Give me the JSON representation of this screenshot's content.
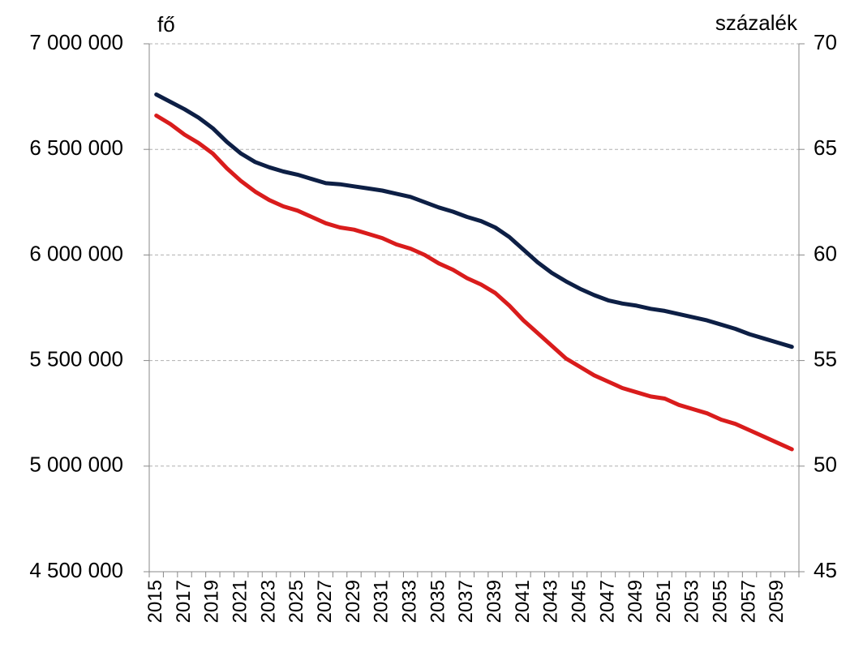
{
  "chart_data": {
    "type": "line",
    "y_label": "fő",
    "y2_label": "százalék",
    "categories": [
      "2015",
      null,
      "2017",
      null,
      "2019",
      null,
      "2021",
      null,
      "2023",
      null,
      "2025",
      null,
      "2027",
      null,
      "2029",
      null,
      "2031",
      null,
      "2033",
      null,
      "2035",
      null,
      "2037",
      null,
      "2039",
      null,
      "2041",
      null,
      "2043",
      null,
      "2045",
      null,
      "2047",
      null,
      "2049",
      null,
      "2051",
      null,
      "2053",
      null,
      "2055",
      null,
      "2057",
      null,
      "2059",
      null
    ],
    "series": [
      {
        "color": "#0d1f45",
        "axis": "y",
        "values": [
          6760000,
          6725000,
          6690000,
          6650000,
          6600000,
          6535000,
          6480000,
          6440000,
          6415000,
          6395000,
          6380000,
          6360000,
          6340000,
          6335000,
          6325000,
          6315000,
          6305000,
          6290000,
          6275000,
          6250000,
          6225000,
          6205000,
          6180000,
          6160000,
          6130000,
          6085000,
          6025000,
          5965000,
          5915000,
          5875000,
          5840000,
          5810000,
          5785000,
          5770000,
          5760000,
          5745000,
          5735000,
          5720000,
          5705000,
          5690000,
          5670000,
          5650000,
          5625000,
          5605000,
          5585000,
          5565000
        ]
      },
      {
        "color": "#d91c1c",
        "axis": "y2",
        "values": [
          66.6,
          66.2,
          65.7,
          65.3,
          64.8,
          64.1,
          63.5,
          63.0,
          62.6,
          62.3,
          62.1,
          61.8,
          61.5,
          61.3,
          61.2,
          61.0,
          60.8,
          60.5,
          60.3,
          60.0,
          59.6,
          59.3,
          58.9,
          58.6,
          58.2,
          57.6,
          56.9,
          56.3,
          55.7,
          55.1,
          54.7,
          54.3,
          54.0,
          53.7,
          53.5,
          53.3,
          53.2,
          52.9,
          52.7,
          52.5,
          52.2,
          52.0,
          51.7,
          51.4,
          51.1,
          50.8
        ]
      }
    ],
    "ylim": [
      4500000,
      7000000
    ],
    "yticks": [
      {
        "value": 4500000,
        "label": "4 500 000"
      },
      {
        "value": 5000000,
        "label": "5 000 000"
      },
      {
        "value": 5500000,
        "label": "5 500 000"
      },
      {
        "value": 6000000,
        "label": "6 000 000"
      },
      {
        "value": 6500000,
        "label": "6 500 000"
      },
      {
        "value": 7000000,
        "label": "7 000 000"
      }
    ],
    "y2lim": [
      45,
      70
    ],
    "y2ticks": [
      45,
      50,
      55,
      60,
      65,
      70
    ],
    "grid": true
  }
}
